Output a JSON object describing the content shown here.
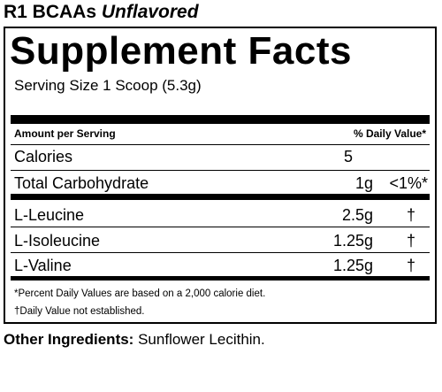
{
  "product": {
    "name": "R1 BCAAs",
    "variant": "Unflavored"
  },
  "facts": {
    "title": "Supplement Facts",
    "serving_size": "Serving Size 1 Scoop (5.3g)",
    "header_left": "Amount per Serving",
    "header_right": "% Daily Value*",
    "rows": [
      {
        "name": "Calories",
        "amount": "5",
        "dv": ""
      },
      {
        "name": "Total Carbohydrate",
        "amount": "1g",
        "dv": "<1%*"
      },
      {
        "name": "L-Leucine",
        "amount": "2.5g",
        "dv": "†"
      },
      {
        "name": "L-Isoleucine",
        "amount": "1.25g",
        "dv": "†"
      },
      {
        "name": "L-Valine",
        "amount": "1.25g",
        "dv": "†"
      }
    ],
    "footnote_1": "*Percent Daily Values are based on a 2,000 calorie diet.",
    "footnote_2": "†Daily Value not established."
  },
  "other_ingredients": {
    "label": "Other Ingredients:",
    "value": "Sunflower Lecithin."
  }
}
